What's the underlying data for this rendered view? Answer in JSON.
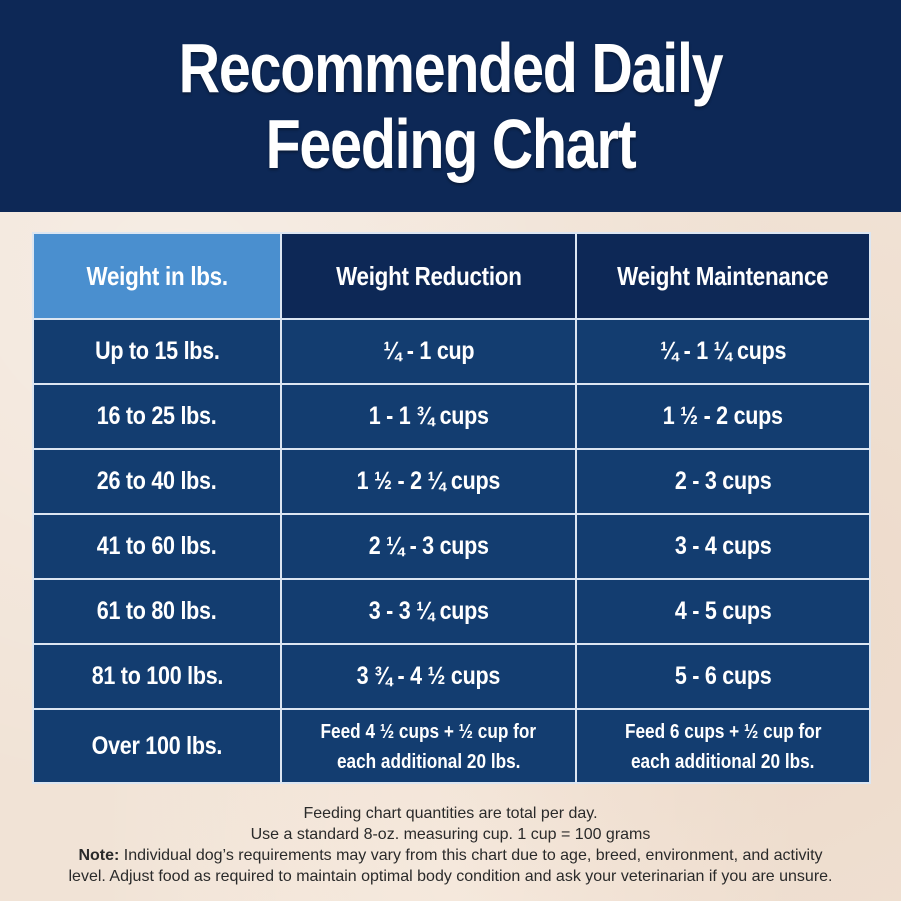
{
  "title": {
    "line1": "Recommended Daily",
    "line2": "Feeding Chart"
  },
  "table": {
    "headers": [
      "Weight in lbs.",
      "Weight Reduction",
      "Weight Maintenance"
    ],
    "rows": [
      {
        "weight": "Up to 15 lbs.",
        "reduction": "¼ - 1 cup",
        "maintenance": "¼ - 1 ¼ cups"
      },
      {
        "weight": "16 to 25 lbs.",
        "reduction": "1  - 1 ¾ cups",
        "maintenance": "1 ½ - 2 cups"
      },
      {
        "weight": "26 to 40 lbs.",
        "reduction": "1 ½ - 2 ¼ cups",
        "maintenance": "2 - 3 cups"
      },
      {
        "weight": "41 to 60 lbs.",
        "reduction": "2 ¼ - 3 cups",
        "maintenance": "3 - 4  cups"
      },
      {
        "weight": "61 to 80 lbs.",
        "reduction": "3  - 3 ¼ cups",
        "maintenance": "4 - 5  cups"
      },
      {
        "weight": "81 to 100 lbs.",
        "reduction": "3 ¾ - 4 ½  cups",
        "maintenance": "5 - 6  cups"
      },
      {
        "weight": "Over 100 lbs.",
        "reduction_line1": "Feed 4 ½ cups + ½ cup for",
        "reduction_line2": "each additional 20 lbs.",
        "maintenance_line1": "Feed 6 cups + ½ cup for",
        "maintenance_line2": "each additional 20 lbs."
      }
    ]
  },
  "footer": {
    "line1": "Feeding chart quantities are total per day.",
    "line2": "Use a standard 8-oz. measuring cup. 1 cup = 100 grams",
    "note_label": "Note:",
    "note_text": " Individual dog’s requirements may vary from this chart due to age, breed, environment, and activity level. Adjust food as required to maintain optimal body condition and ask your veterinarian if you are unsure."
  },
  "colors": {
    "header_bg": "#0d2856",
    "first_header_bg": "#4a8fcf",
    "row_bg": "#133d70",
    "page_bg": "#f1e3d6"
  }
}
